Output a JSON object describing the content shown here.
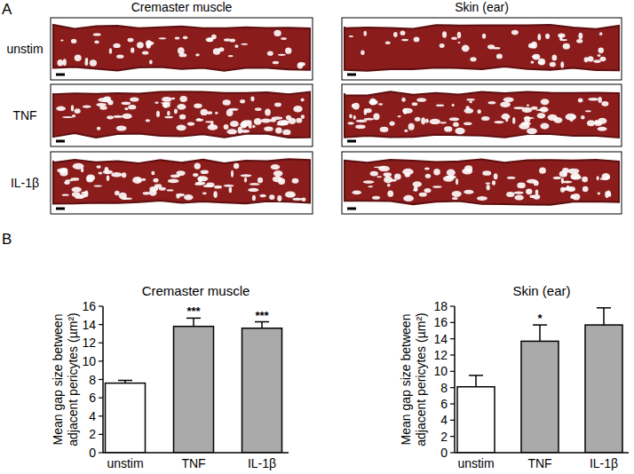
{
  "figure": {
    "panel_a": {
      "label": "A",
      "columns": [
        "Cremaster muscle",
        "Skin (ear)"
      ],
      "rows": [
        "unstim",
        "TNF",
        "IL-1β"
      ]
    },
    "panel_b_label": "B"
  },
  "chart_data": [
    {
      "type": "bar",
      "title": "Cremaster muscle",
      "ylabel": [
        "Mean gap size between",
        "adjacent pericytes (µm²)"
      ],
      "categories": [
        "unstim",
        "TNF",
        "IL-1β"
      ],
      "values": [
        7.6,
        13.8,
        13.6
      ],
      "errors": [
        0.3,
        0.9,
        0.7
      ],
      "significance": [
        null,
        "***",
        "***"
      ],
      "colors": [
        "#ffffff",
        "#aaaaaa",
        "#aaaaaa"
      ],
      "ylim": [
        0,
        16
      ],
      "yticks": [
        0,
        2,
        4,
        6,
        8,
        10,
        12,
        14,
        16
      ],
      "grid": false
    },
    {
      "type": "bar",
      "title": "Skin (ear)",
      "ylabel": [
        "Mean gap size between",
        "adjacent pericytes (µm²)"
      ],
      "categories": [
        "unstim",
        "TNF",
        "IL-1β"
      ],
      "values": [
        8.1,
        13.7,
        15.7
      ],
      "errors": [
        1.4,
        2.0,
        2.1
      ],
      "significance": [
        null,
        "*",
        null
      ],
      "colors": [
        "#ffffff",
        "#aaaaaa",
        "#aaaaaa"
      ],
      "ylim": [
        0,
        18
      ],
      "yticks": [
        0,
        2,
        4,
        6,
        8,
        10,
        12,
        14,
        16,
        18
      ],
      "grid": false
    }
  ]
}
